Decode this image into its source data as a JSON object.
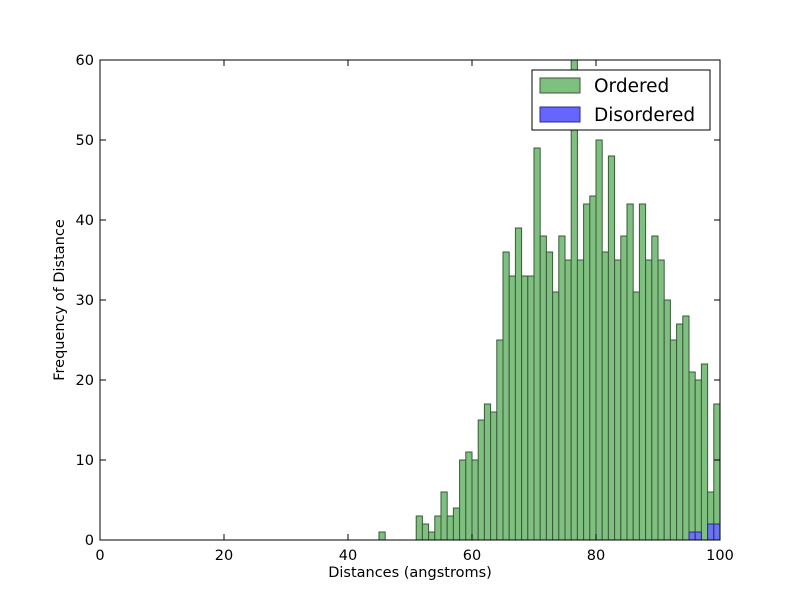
{
  "chart_data": {
    "type": "bar",
    "title": "",
    "xlabel": "Distances (angstroms)",
    "ylabel": "Frequency of Distance",
    "xlim": [
      0,
      100
    ],
    "ylim": [
      0,
      60
    ],
    "xticks": [
      "0",
      "20",
      "40",
      "60",
      "80",
      "100"
    ],
    "yticks": [
      "0",
      "10",
      "20",
      "30",
      "40",
      "50",
      "60"
    ],
    "grid": false,
    "legend_position": "top-right",
    "bin_width": 1,
    "series": [
      {
        "name": "Ordered",
        "color": "#7fbf7f",
        "x": [
          45,
          51,
          52,
          53,
          54,
          55,
          56,
          57,
          58,
          59,
          60,
          61,
          62,
          63,
          64,
          65,
          66,
          67,
          68,
          69,
          70,
          71,
          72,
          73,
          74,
          75,
          76,
          77,
          78,
          79,
          80,
          81,
          82,
          83,
          84,
          85,
          86,
          87,
          88,
          89,
          90,
          91,
          92,
          93,
          94,
          95,
          96,
          97,
          98,
          99
        ],
        "values": [
          1,
          3,
          2,
          1,
          3,
          6,
          3,
          4,
          10,
          11,
          10,
          15,
          17,
          16,
          25,
          36,
          33,
          39,
          33,
          33,
          49,
          38,
          36,
          31,
          38,
          35,
          60,
          35,
          42,
          43,
          50,
          36,
          48,
          35,
          38,
          42,
          31,
          42,
          35,
          38,
          35,
          30,
          25,
          27,
          28,
          21,
          20,
          22,
          6,
          17
        ]
      },
      {
        "name": "Disordered",
        "color": "#6666ff",
        "x": [
          95,
          96,
          98,
          99
        ],
        "values": [
          1,
          1,
          2,
          2
        ]
      }
    ]
  },
  "colors": {
    "ordered_fill": "#7fbf7f",
    "ordered_edge": "#3a5a3a",
    "disordered_fill": "#6666ff",
    "disordered_overlap": "#3a4fb8",
    "axis": "#000000"
  }
}
